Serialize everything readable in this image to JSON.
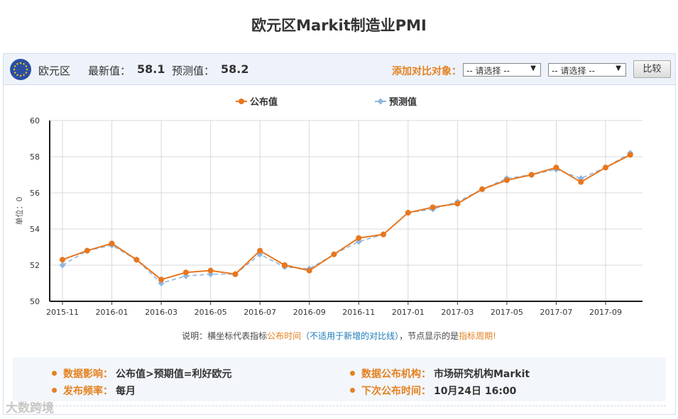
{
  "page": {
    "title": "欧元区Markit制造业PMI"
  },
  "header": {
    "region": "欧元区",
    "latest_label": "最新值：",
    "latest_value": "58.1",
    "forecast_label": "预测值：",
    "forecast_value": "58.2",
    "compare_label": "添加对比对象：",
    "select1": "-- 请选择 --",
    "select2": "-- 请选择 --",
    "compare_button": "比较",
    "flag_icon": "eu-flag-icon"
  },
  "chart_data": {
    "type": "line",
    "legend_position": "top-center",
    "ylabel": "单位：0",
    "ylim": [
      50,
      60
    ],
    "yticks": [
      50,
      52,
      54,
      56,
      58,
      60
    ],
    "x": [
      "2015-11",
      "2015-12",
      "2016-01",
      "2016-02",
      "2016-03",
      "2016-04",
      "2016-05",
      "2016-06",
      "2016-07",
      "2016-08",
      "2016-09",
      "2016-10",
      "2016-11",
      "2016-12",
      "2017-01",
      "2017-02",
      "2017-03",
      "2017-04",
      "2017-05",
      "2017-06",
      "2017-07",
      "2017-08",
      "2017-09",
      "2017-10"
    ],
    "xtick_labels": [
      "2015-11",
      "2016-01",
      "2016-03",
      "2016-05",
      "2016-07",
      "2016-09",
      "2016-11",
      "2017-01",
      "2017-03",
      "2017-05",
      "2017-07",
      "2017-09"
    ],
    "grid": true,
    "series": [
      {
        "name": "公布值",
        "color": "#e8761e",
        "style": "solid",
        "values": [
          52.3,
          52.8,
          53.2,
          52.3,
          51.2,
          51.6,
          51.7,
          51.5,
          52.8,
          52.0,
          51.7,
          52.6,
          53.5,
          53.7,
          54.9,
          55.2,
          55.4,
          56.2,
          56.7,
          57.0,
          57.4,
          56.6,
          57.4,
          58.1
        ]
      },
      {
        "name": "预测值",
        "color": "#8fb7e0",
        "style": "dashed",
        "values": [
          52.0,
          52.8,
          53.1,
          52.3,
          51.0,
          51.4,
          51.5,
          51.5,
          52.6,
          51.9,
          51.8,
          52.6,
          53.3,
          53.7,
          54.9,
          55.1,
          55.5,
          56.2,
          56.8,
          57.0,
          57.3,
          56.8,
          57.4,
          58.2
        ]
      }
    ]
  },
  "note": {
    "prefix": "说明：横坐标代表指标",
    "publish_time": "公布时间",
    "paren": "（不适用于新增的对比线）",
    "mid": "，节点显示的是",
    "period": "指标周期!"
  },
  "info": {
    "impact_label": "数据影响：",
    "impact_value": "公布值>预期值=利好欧元",
    "frequency_label": "发布频率：",
    "frequency_value": "每月",
    "agency_label": "数据公布机构：",
    "agency_value": "市场研究机构Markit",
    "next_label": "下次公布时间：",
    "next_value": "10月24日 16:00"
  },
  "watermark": "大数跨境"
}
